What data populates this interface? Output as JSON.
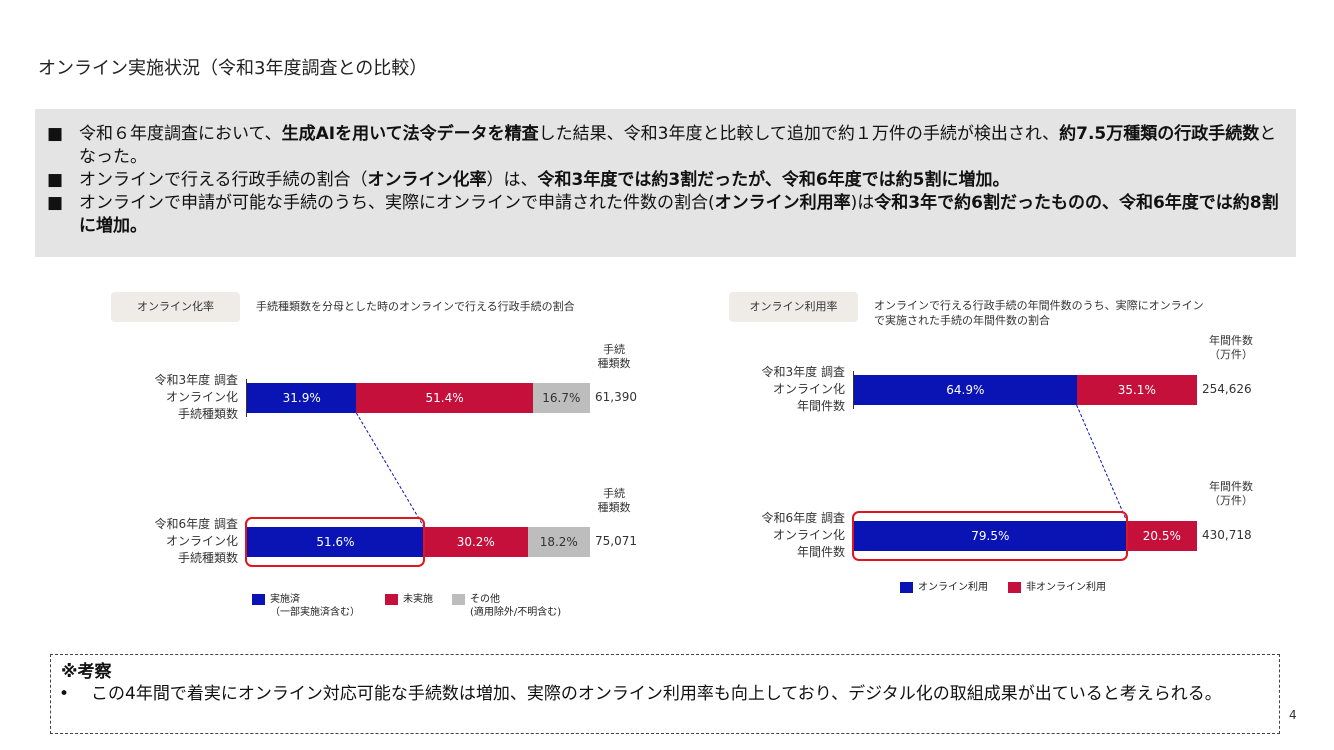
{
  "title": "オンライン実施状況（令和3年度調査との比較）",
  "summary": [
    {
      "mark": "■",
      "parts": [
        {
          "t": "令和６年度調査において、",
          "b": false
        },
        {
          "t": "生成AIを用いて法令データを精査",
          "b": true
        },
        {
          "t": "した結果、令和3年度と比較して追加で約１万件の手続が検出され、",
          "b": false
        },
        {
          "t": "約7.5万種類の行政手続数",
          "b": true
        },
        {
          "t": "となった。",
          "b": false
        }
      ]
    },
    {
      "mark": "■",
      "parts": [
        {
          "t": "オンラインで行える行政手続の割合（",
          "b": false
        },
        {
          "t": "オンライン化率",
          "b": true
        },
        {
          "t": "）は、",
          "b": false
        },
        {
          "t": "令和3年度では約3割だったが、令和6年度では約5割に増加。",
          "b": true
        }
      ]
    },
    {
      "mark": "■",
      "parts": [
        {
          "t": "オンラインで申請が可能な手続のうち、実際にオンラインで申請された件数の割合(",
          "b": false
        },
        {
          "t": "オンライン利用率",
          "b": true
        },
        {
          "t": ")は",
          "b": false
        },
        {
          "t": "令和3年で約6割だったものの、令和6年度では約8割に増加。",
          "b": true
        }
      ]
    }
  ],
  "left_panel": {
    "tag": "オンライン化率",
    "desc": "手続種類数を分母とした時のオンラインで行える行政手続の割合"
  },
  "right_panel": {
    "tag": "オンライン利用率",
    "desc_lines": [
      "オンラインで行える行政手続の年間件数のうち、実際にオンライン",
      "で実施された手続の年間件数の割合"
    ]
  },
  "chart_data": [
    {
      "type": "bar",
      "stacked": true,
      "orientation": "horizontal",
      "total_label_lines": [
        "手続",
        "種類数"
      ],
      "rows": [
        {
          "label_lines": [
            "令和3年度 調査",
            "オンライン化",
            "手続種類数"
          ],
          "values": [
            31.9,
            51.4,
            16.7
          ],
          "labels": [
            "31.9%",
            "51.4%",
            "16.7%"
          ],
          "total": "61,390"
        },
        {
          "label_lines": [
            "令和6年度 調査",
            "オンライン化",
            "手続種類数"
          ],
          "values": [
            51.6,
            30.2,
            18.2
          ],
          "labels": [
            "51.6%",
            "30.2%",
            "18.2%"
          ],
          "total": "75,071"
        }
      ],
      "series": [
        {
          "name_lines": [
            "実施済",
            "（一部実施済含む）"
          ],
          "color": "#0a14b4"
        },
        {
          "name_lines": [
            "未実施"
          ],
          "color": "#c5103c"
        },
        {
          "name_lines": [
            "その他",
            "(適用除外/不明含む)"
          ],
          "color": "#bdbdbd"
        }
      ],
      "legend": "bottom",
      "highlight_row": 1
    },
    {
      "type": "bar",
      "stacked": true,
      "orientation": "horizontal",
      "total_label_lines": [
        "年間件数",
        "（万件）"
      ],
      "rows": [
        {
          "label_lines": [
            "令和3年度 調査",
            "オンライン化",
            "年間件数"
          ],
          "values": [
            64.9,
            35.1
          ],
          "labels": [
            "64.9%",
            "35.1%"
          ],
          "total": "254,626"
        },
        {
          "label_lines": [
            "令和6年度 調査",
            "オンライン化",
            "年間件数"
          ],
          "values": [
            79.5,
            20.5
          ],
          "labels": [
            "79.5%",
            "20.5%"
          ],
          "total": "430,718"
        }
      ],
      "series": [
        {
          "name_lines": [
            "オンライン利用"
          ],
          "color": "#0a14b4"
        },
        {
          "name_lines": [
            "非オンライン利用"
          ],
          "color": "#c5103c"
        }
      ],
      "legend": "bottom",
      "highlight_row": 1
    }
  ],
  "note": {
    "heading": "※考察",
    "bullet": "•",
    "text": "この4年間で着実にオンライン対応可能な手続数は増加、実際のオンライン利用率も向上しており、デジタル化の取組成果が出ていると考えられる。"
  },
  "page_number": "4"
}
